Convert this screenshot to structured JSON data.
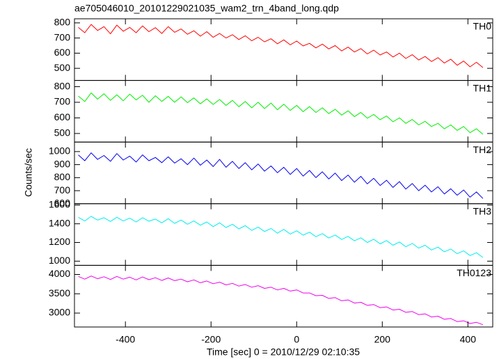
{
  "chart_data": {
    "type": "line",
    "title": "ae705046010_20101229021035_wam2_trn_4band_long.qdp",
    "xlabel": "Time [sec] 0 = 2010/12/29 02:10:35",
    "ylabel": "Counts/sec",
    "xlim": [
      -519,
      458
    ],
    "xticks": [
      -400,
      -200,
      0,
      200,
      400
    ],
    "x": [
      -510,
      -495,
      -480,
      -465,
      -450,
      -435,
      -420,
      -405,
      -390,
      -375,
      -360,
      -345,
      -330,
      -315,
      -300,
      -285,
      -270,
      -255,
      -240,
      -225,
      -210,
      -195,
      -180,
      -165,
      -150,
      -135,
      -120,
      -105,
      -90,
      -75,
      -60,
      -45,
      -30,
      -15,
      0,
      15,
      30,
      45,
      60,
      75,
      90,
      105,
      120,
      135,
      150,
      165,
      180,
      195,
      210,
      225,
      240,
      255,
      270,
      285,
      300,
      315,
      330,
      345,
      360,
      375,
      390,
      405,
      420,
      435
    ],
    "series": [
      {
        "name": "TH0",
        "color": "#ff0000",
        "ylim": [
          420,
          827
        ],
        "yticks": [
          500,
          600,
          700,
          800
        ],
        "values": [
          770,
          735,
          790,
          750,
          775,
          728,
          785,
          745,
          770,
          735,
          780,
          742,
          768,
          730,
          775,
          738,
          760,
          725,
          748,
          712,
          742,
          705,
          730,
          700,
          722,
          690,
          715,
          682,
          705,
          675,
          695,
          662,
          688,
          655,
          680,
          648,
          665,
          635,
          660,
          628,
          650,
          615,
          640,
          608,
          630,
          595,
          620,
          588,
          608,
          575,
          600,
          565,
          590,
          555,
          578,
          545,
          570,
          535,
          560,
          520,
          548,
          510,
          540,
          505
        ]
      },
      {
        "name": "TH1",
        "color": "#00ee00",
        "ylim": [
          445,
          840
        ],
        "yticks": [
          500,
          600,
          700,
          800
        ],
        "values": [
          740,
          705,
          760,
          720,
          755,
          712,
          748,
          710,
          752,
          715,
          745,
          700,
          742,
          706,
          738,
          700,
          735,
          698,
          728,
          690,
          722,
          686,
          718,
          680,
          712,
          672,
          705,
          665,
          700,
          660,
          695,
          652,
          688,
          648,
          680,
          640,
          672,
          635,
          665,
          628,
          655,
          618,
          645,
          608,
          635,
          598,
          622,
          588,
          612,
          575,
          600,
          565,
          590,
          555,
          578,
          545,
          565,
          530,
          555,
          520,
          545,
          505,
          530,
          495
        ]
      },
      {
        "name": "TH2",
        "color": "#0000ee",
        "ylim": [
          600,
          1073
        ],
        "yticks": [
          600,
          700,
          800,
          900,
          1000
        ],
        "values": [
          975,
          930,
          990,
          940,
          970,
          925,
          985,
          935,
          965,
          920,
          975,
          930,
          955,
          915,
          960,
          912,
          945,
          900,
          950,
          895,
          935,
          885,
          940,
          880,
          925,
          870,
          915,
          860,
          905,
          850,
          890,
          838,
          880,
          825,
          870,
          812,
          855,
          800,
          845,
          790,
          835,
          778,
          820,
          765,
          810,
          752,
          795,
          740,
          780,
          725,
          770,
          712,
          755,
          700,
          742,
          690,
          730,
          675,
          715,
          665,
          705,
          650,
          690,
          640
        ]
      },
      {
        "name": "TH3",
        "color": "#00eeee",
        "ylim": [
          955,
          1615
        ],
        "yticks": [
          1000,
          1200,
          1400,
          1600
        ],
        "values": [
          1470,
          1430,
          1480,
          1440,
          1465,
          1425,
          1470,
          1430,
          1460,
          1420,
          1465,
          1428,
          1450,
          1410,
          1455,
          1405,
          1440,
          1395,
          1430,
          1385,
          1420,
          1370,
          1410,
          1360,
          1395,
          1345,
          1380,
          1330,
          1365,
          1318,
          1350,
          1300,
          1340,
          1290,
          1325,
          1278,
          1310,
          1262,
          1295,
          1248,
          1280,
          1232,
          1265,
          1218,
          1250,
          1200,
          1235,
          1185,
          1220,
          1170,
          1205,
          1155,
          1190,
          1140,
          1170,
          1120,
          1150,
          1100,
          1130,
          1080,
          1110,
          1060,
          1090,
          1040
        ]
      },
      {
        "name": "TH0123",
        "color": "#ee00ee",
        "ylim": [
          2640,
          4236
        ],
        "yticks": [
          3000,
          3500,
          4000
        ],
        "values": [
          3950,
          3880,
          3960,
          3890,
          3940,
          3870,
          3950,
          3880,
          3930,
          3860,
          3935,
          3865,
          3915,
          3845,
          3910,
          3840,
          3880,
          3810,
          3860,
          3785,
          3830,
          3760,
          3800,
          3730,
          3770,
          3700,
          3740,
          3670,
          3710,
          3640,
          3670,
          3600,
          3640,
          3570,
          3600,
          3520,
          3520,
          3450,
          3460,
          3380,
          3400,
          3320,
          3340,
          3260,
          3280,
          3200,
          3220,
          3140,
          3160,
          3080,
          3100,
          3020,
          3040,
          2960,
          2980,
          2900,
          2920,
          2840,
          2860,
          2780,
          2800,
          2730,
          2760,
          2700
        ]
      }
    ]
  }
}
